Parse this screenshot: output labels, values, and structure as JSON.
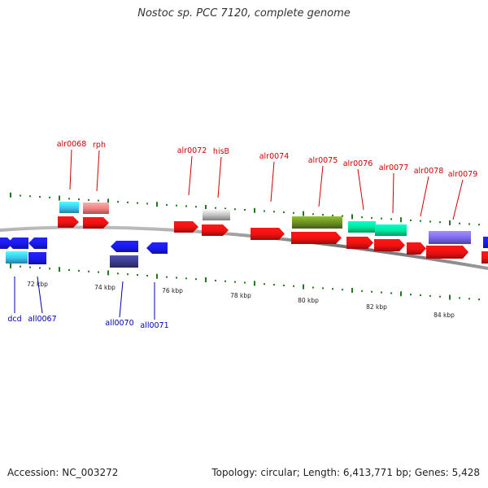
{
  "title": "Nostoc sp. PCC 7120, complete genome",
  "footer": {
    "accession": "Accession: NC_003272",
    "summary": "Topology: circular; Length: 6,413,771 bp; Genes: 5,428"
  },
  "colors": {
    "label_top": "#cc0000",
    "label_bottom": "#0000aa",
    "tick": "#1f7a1f",
    "backbone": "#777777"
  },
  "scale_ticks": [
    {
      "label": "72 kbp"
    },
    {
      "label": "74 kbp"
    },
    {
      "label": "76 kbp"
    },
    {
      "label": "78 kbp"
    },
    {
      "label": "80 kbp"
    },
    {
      "label": "82 kbp"
    },
    {
      "label": "84 kbp"
    }
  ],
  "gene_labels_top": [
    {
      "name": "alr0068"
    },
    {
      "name": "rph"
    },
    {
      "name": "alr0072"
    },
    {
      "name": "hisB"
    },
    {
      "name": "alr0074"
    },
    {
      "name": "alr0075"
    },
    {
      "name": "alr0076"
    },
    {
      "name": "alr0077"
    },
    {
      "name": "alr0078"
    },
    {
      "name": "alr0079"
    }
  ],
  "gene_labels_bottom": [
    {
      "name": "dcd"
    },
    {
      "name": "all0067"
    },
    {
      "name": "all0070"
    },
    {
      "name": "all0071"
    }
  ]
}
